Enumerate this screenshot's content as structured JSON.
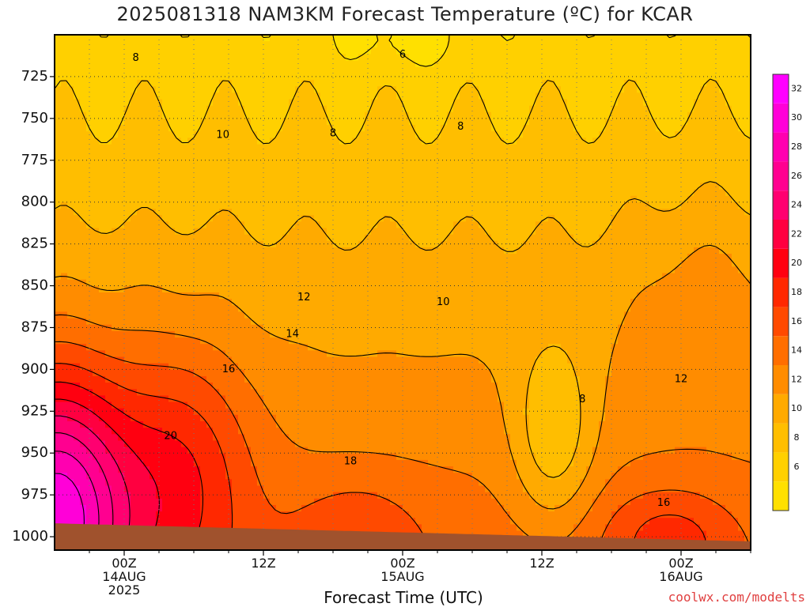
{
  "title": "2025081318 NAM3KM Forecast Temperature (ºC) for KCAR",
  "xlabel": "Forecast Time (UTC)",
  "credit": "coolwx.com/modelts",
  "chart_data": {
    "type": "heatmap",
    "title": "2025081318 NAM3KM Forecast Temperature (ºC) for KCAR",
    "xlabel": "Forecast Time (UTC)",
    "ylabel": "",
    "y_axis": {
      "ticks": [
        725,
        750,
        775,
        800,
        825,
        850,
        875,
        900,
        925,
        950,
        975,
        1000
      ],
      "range": [
        700,
        1008
      ],
      "inverted": true,
      "unit": "hPa"
    },
    "x_axis": {
      "range_hours": [
        -6,
        54
      ],
      "ticks": [
        {
          "hour": 0,
          "lines": [
            "00Z",
            "14AUG",
            "2025"
          ]
        },
        {
          "hour": 12,
          "lines": [
            "12Z"
          ]
        },
        {
          "hour": 24,
          "lines": [
            "00Z",
            "15AUG"
          ]
        },
        {
          "hour": 36,
          "lines": [
            "12Z"
          ]
        },
        {
          "hour": 48,
          "lines": [
            "00Z",
            "16AUG"
          ]
        }
      ]
    },
    "colorbar": {
      "labels": [
        6,
        8,
        10,
        12,
        14,
        16,
        18,
        20,
        22,
        24,
        26,
        28,
        30,
        32
      ],
      "bins": [
        {
          "from": 4,
          "to": 6,
          "color": "#ffe000"
        },
        {
          "from": 6,
          "to": 8,
          "color": "#ffd000"
        },
        {
          "from": 8,
          "to": 10,
          "color": "#ffbe00"
        },
        {
          "from": 10,
          "to": 12,
          "color": "#ffaa00"
        },
        {
          "from": 12,
          "to": 14,
          "color": "#ff8c00"
        },
        {
          "from": 14,
          "to": 16,
          "color": "#ff6e00"
        },
        {
          "from": 16,
          "to": 18,
          "color": "#ff4a00"
        },
        {
          "from": 18,
          "to": 20,
          "color": "#ff2800"
        },
        {
          "from": 20,
          "to": 22,
          "color": "#ff0010"
        },
        {
          "from": 22,
          "to": 24,
          "color": "#ff0040"
        },
        {
          "from": 24,
          "to": 26,
          "color": "#ff0070"
        },
        {
          "from": 26,
          "to": 28,
          "color": "#ff0090"
        },
        {
          "from": 28,
          "to": 30,
          "color": "#ff00b0"
        },
        {
          "from": 30,
          "to": 32,
          "color": "#ff00d8"
        },
        {
          "from": 32,
          "to": 34,
          "color": "#ff00ff"
        }
      ]
    },
    "contour_labels": [
      {
        "text": "8",
        "hour": 1.0,
        "p": 714
      },
      {
        "text": "6",
        "hour": 24.0,
        "p": 712
      },
      {
        "text": "8",
        "hour": 18.0,
        "p": 759
      },
      {
        "text": "8",
        "hour": 29.0,
        "p": 755
      },
      {
        "text": "10",
        "hour": 8.5,
        "p": 760
      },
      {
        "text": "12",
        "hour": 15.5,
        "p": 857
      },
      {
        "text": "14",
        "hour": 14.5,
        "p": 879
      },
      {
        "text": "16",
        "hour": 9.0,
        "p": 900
      },
      {
        "text": "20",
        "hour": 4.0,
        "p": 940
      },
      {
        "text": "18",
        "hour": 19.5,
        "p": 955
      },
      {
        "text": "10",
        "hour": 27.5,
        "p": 860
      },
      {
        "text": "8",
        "hour": 39.5,
        "p": 918
      },
      {
        "text": "12",
        "hour": 48.0,
        "p": 906
      },
      {
        "text": "16",
        "hour": 46.5,
        "p": 980
      }
    ],
    "surface": {
      "color": "#a0522d"
    }
  }
}
